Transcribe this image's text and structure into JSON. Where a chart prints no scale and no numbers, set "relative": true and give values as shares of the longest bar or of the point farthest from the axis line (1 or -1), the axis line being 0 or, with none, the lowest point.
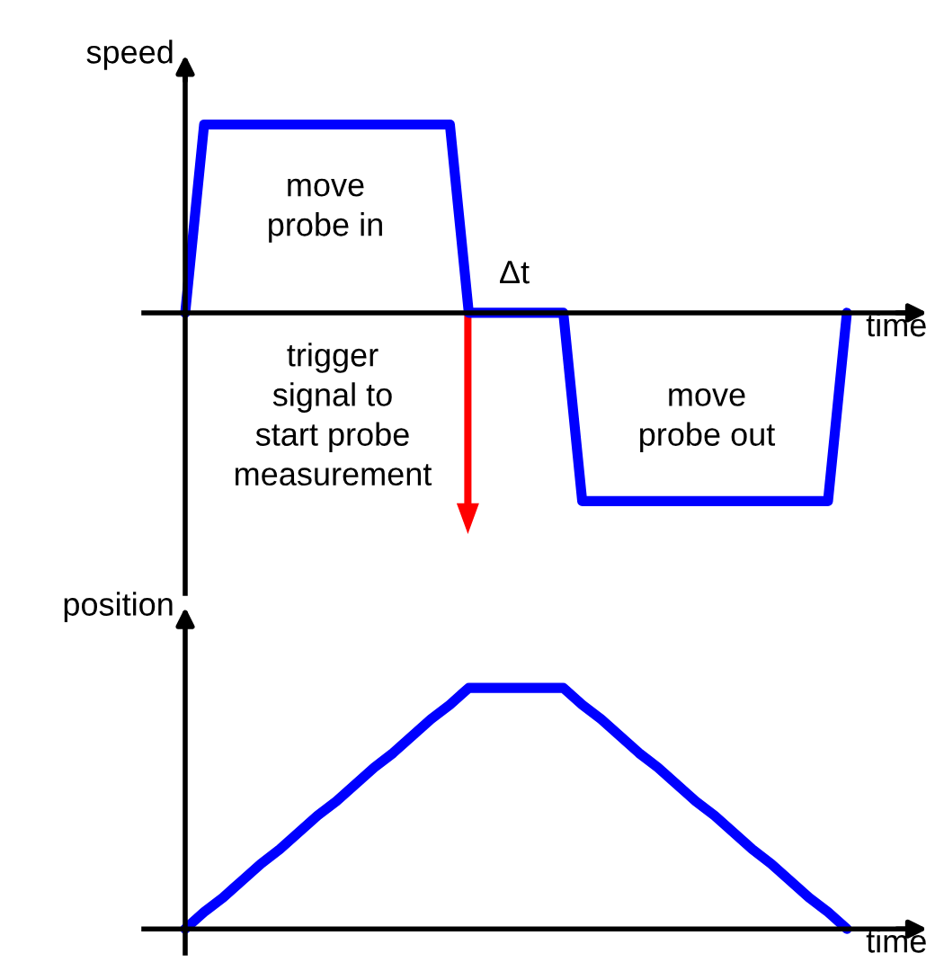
{
  "chart_data": [
    {
      "type": "line",
      "relative": true,
      "ylabel": "speed",
      "xlabel": "time",
      "categories": [
        null,
        null,
        null,
        null,
        null,
        null,
        null,
        null,
        null,
        null,
        null,
        null,
        null,
        null,
        null,
        null,
        null,
        null,
        null,
        null,
        null,
        null,
        null,
        null,
        null,
        null,
        null,
        null,
        null,
        null,
        null,
        null,
        null,
        null,
        null,
        null
      ],
      "series": [
        {
          "color": "#0000ff",
          "values": [
            0,
            1,
            1,
            1,
            1,
            1,
            1,
            1,
            1,
            1,
            1,
            1,
            1,
            1,
            1,
            0,
            0,
            0,
            0,
            0,
            0,
            -1,
            -1,
            -1,
            -1,
            -1,
            -1,
            -1,
            -1,
            -1,
            -1,
            -1,
            -1,
            -1,
            -1,
            0
          ]
        }
      ],
      "annotations": [
        "move\nprobe in",
        "Δt",
        "move\nprobe out",
        "trigger\nsignal to\nstart probe\nmeasurement"
      ]
    },
    {
      "type": "line",
      "relative": true,
      "ylabel": "position",
      "xlabel": "time",
      "categories": [
        null,
        null,
        null,
        null,
        null,
        null,
        null,
        null,
        null,
        null,
        null,
        null,
        null,
        null,
        null,
        null,
        null,
        null,
        null,
        null,
        null,
        null,
        null,
        null,
        null,
        null,
        null,
        null,
        null,
        null,
        null,
        null,
        null,
        null,
        null,
        null
      ],
      "series": [
        {
          "color": "#0000ff",
          "values": [
            0,
            0.07,
            0.13,
            0.2,
            0.27,
            0.33,
            0.4,
            0.47,
            0.53,
            0.6,
            0.67,
            0.73,
            0.8,
            0.87,
            0.93,
            1,
            1,
            1,
            1,
            1,
            1,
            0.93,
            0.87,
            0.8,
            0.73,
            0.67,
            0.6,
            0.53,
            0.47,
            0.4,
            0.33,
            0.27,
            0.2,
            0.13,
            0.07,
            0
          ]
        }
      ]
    }
  ]
}
